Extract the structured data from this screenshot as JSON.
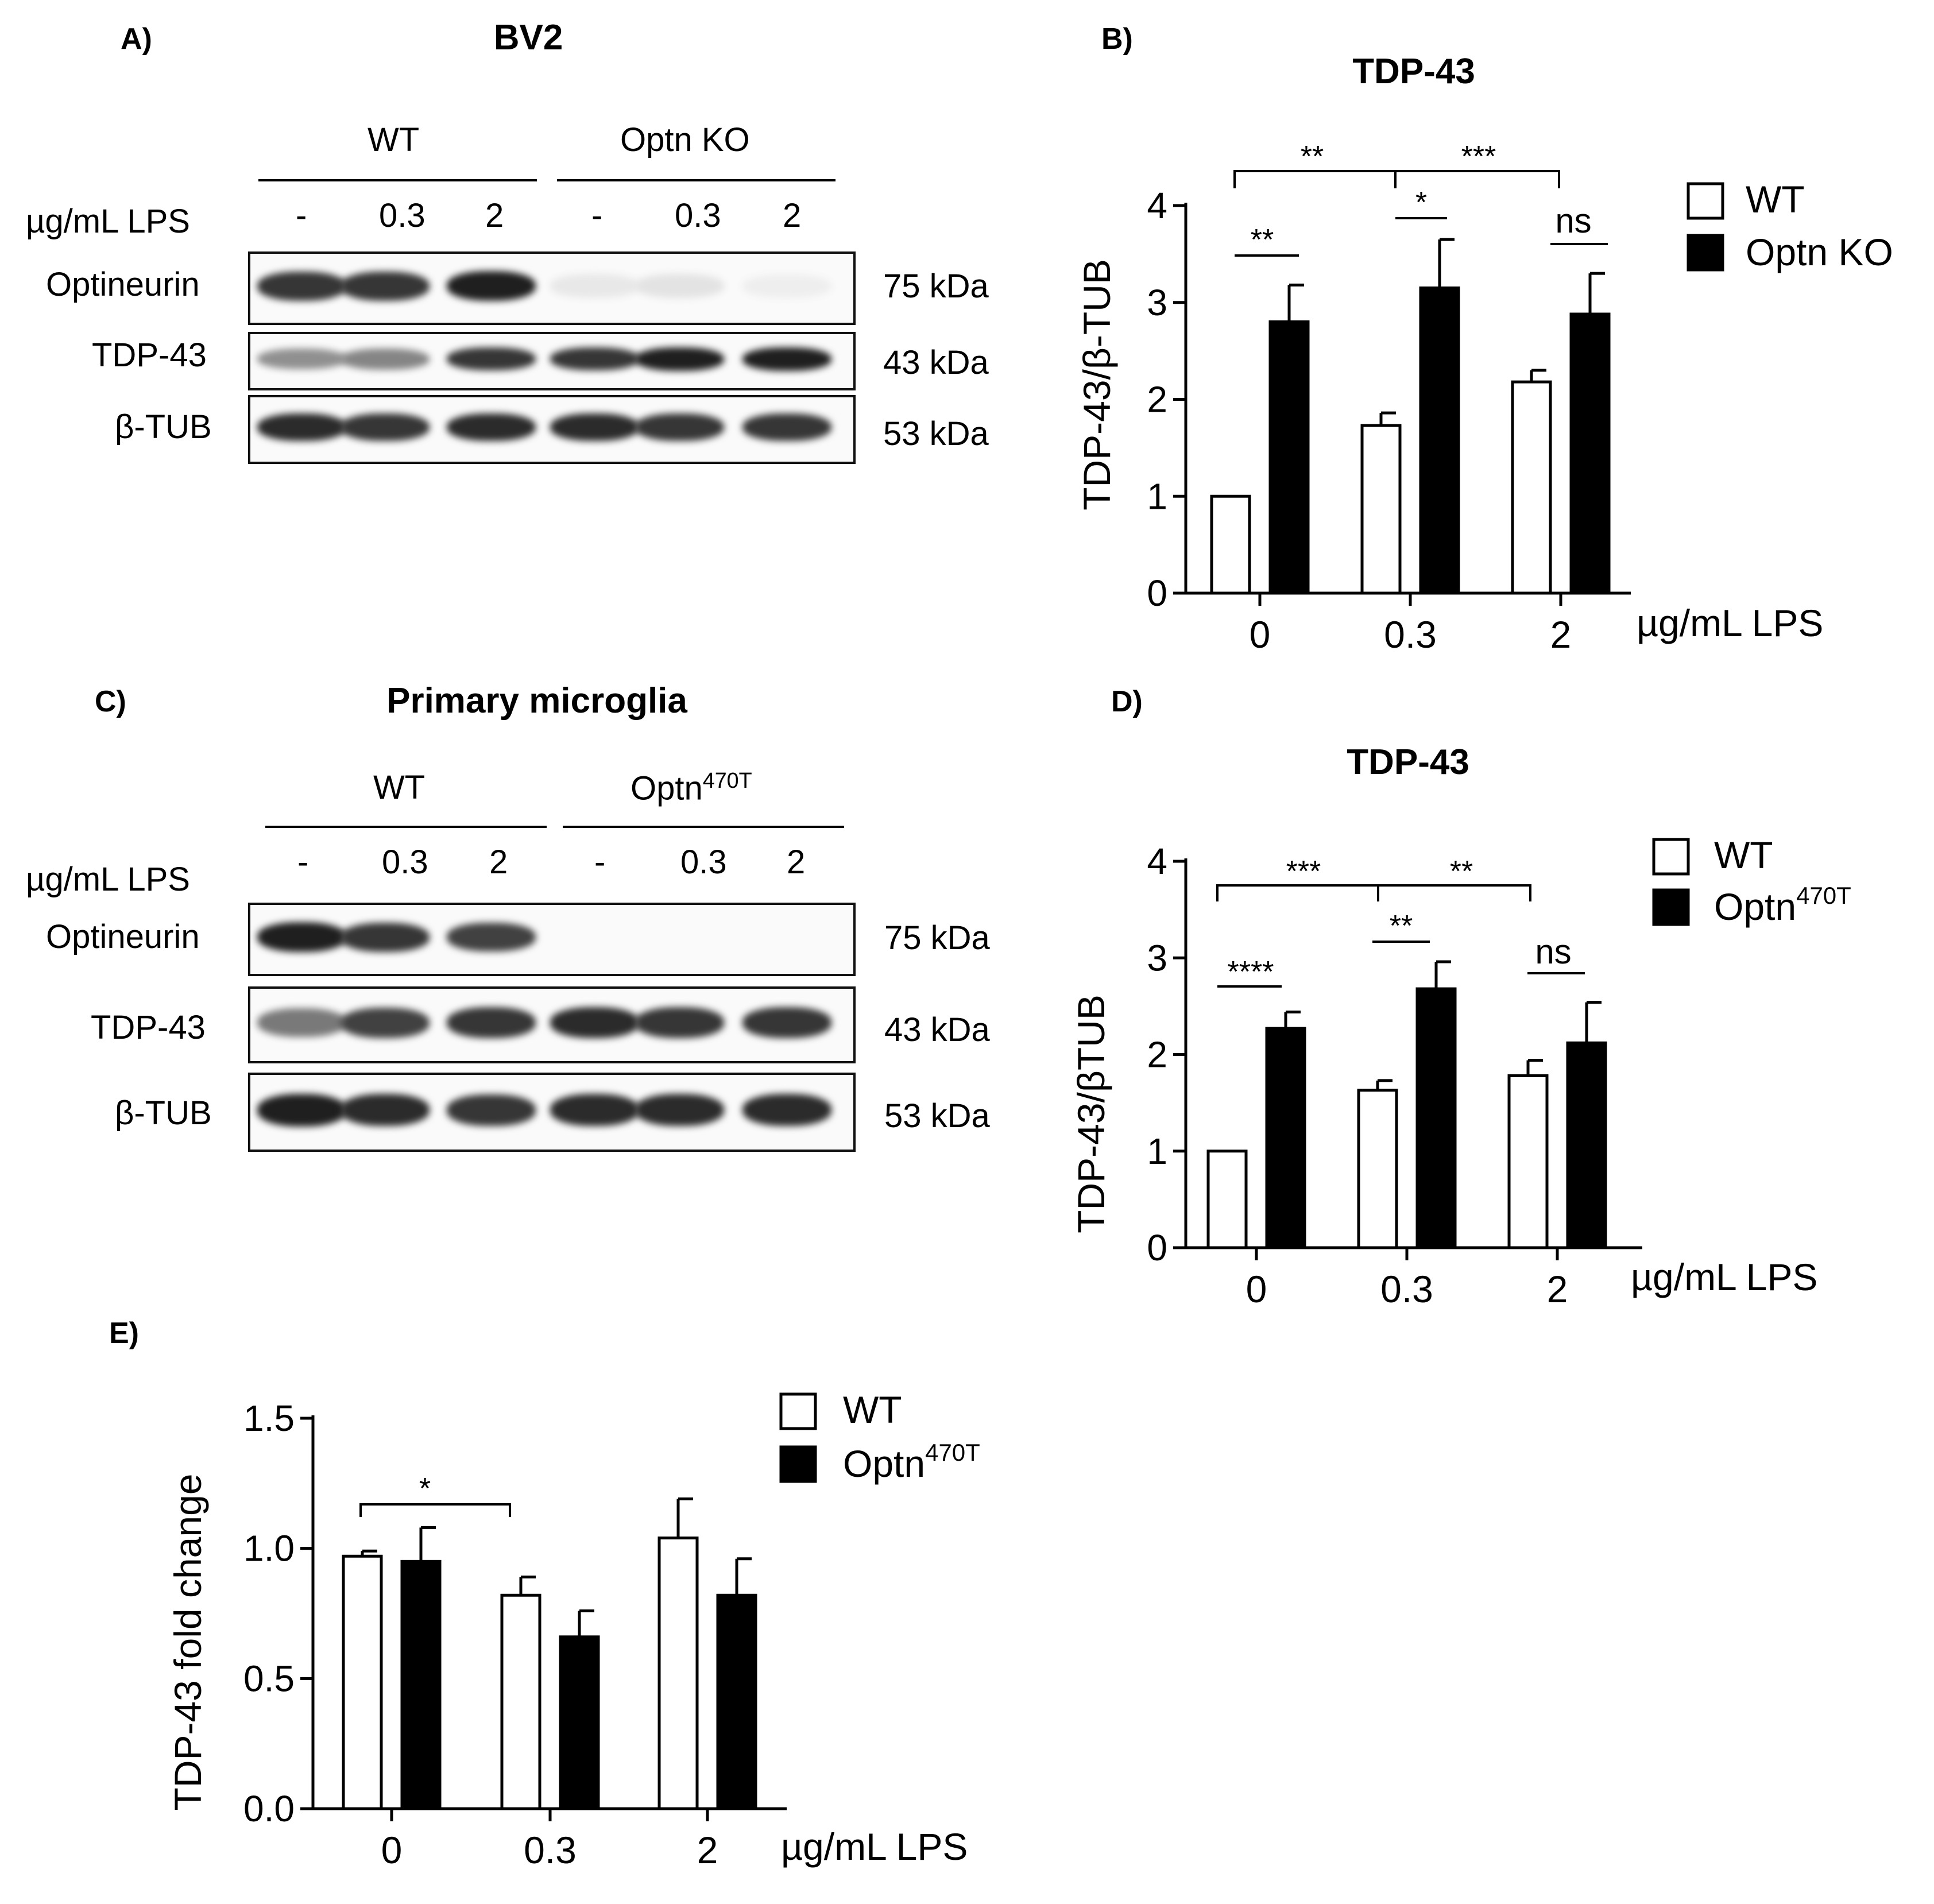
{
  "panel_A": {
    "label": "A)",
    "title": "BV2",
    "groups": [
      "WT",
      "Optn KO"
    ],
    "lps_label": "µg/mL LPS",
    "lanes": [
      "-",
      "0.3",
      "2",
      "-",
      "0.3",
      "2"
    ],
    "rows": [
      {
        "name": "Optineurin",
        "kda": "75 kDa",
        "intensity": [
          0.85,
          0.85,
          0.95,
          0.06,
          0.08,
          0.03
        ]
      },
      {
        "name": "TDP-43",
        "kda": "43 kDa",
        "intensity": [
          0.45,
          0.5,
          0.85,
          0.85,
          0.95,
          0.95
        ]
      },
      {
        "name": "β-TUB",
        "kda": "53 kDa",
        "intensity": [
          0.9,
          0.85,
          0.9,
          0.9,
          0.85,
          0.85
        ]
      }
    ]
  },
  "panel_C": {
    "label": "C)",
    "title": "Primary microglia",
    "groups": [
      "WT",
      "Optn",
      "470T"
    ],
    "lps_label": "µg/mL LPS",
    "lanes": [
      "-",
      "0.3",
      "2",
      "-",
      "0.3",
      "2"
    ],
    "rows": [
      {
        "name": "Optineurin",
        "kda": "75 kDa",
        "intensity": [
          0.95,
          0.85,
          0.8,
          0.0,
          0.0,
          0.0
        ]
      },
      {
        "name": "TDP-43",
        "kda": "43 kDa",
        "intensity": [
          0.55,
          0.8,
          0.85,
          0.9,
          0.85,
          0.85
        ]
      },
      {
        "name": "β-TUB",
        "kda": "53 kDa",
        "intensity": [
          0.95,
          0.9,
          0.85,
          0.9,
          0.9,
          0.9
        ]
      }
    ]
  },
  "panel_E_label": "E)",
  "chart_data": [
    {
      "panel": "B)",
      "type": "bar",
      "title": "TDP-43",
      "ylabel": "TDP-43/β-TUB",
      "xlabel": "µg/mL LPS",
      "categories": [
        "0",
        "0.3",
        "2"
      ],
      "ylim": [
        0,
        4
      ],
      "yticks": [
        "0",
        "1",
        "2",
        "3",
        "4"
      ],
      "series": [
        {
          "name": "WT",
          "values": [
            1.0,
            1.73,
            2.18
          ],
          "err": [
            0,
            0.13,
            0.12
          ],
          "color": "#ffffff"
        },
        {
          "name": "Optn KO",
          "values": [
            2.8,
            3.15,
            2.88
          ],
          "err": [
            0.38,
            0.5,
            0.42
          ],
          "color": "#000000"
        }
      ],
      "annotations": [
        "**",
        "***",
        "**",
        "*",
        "ns"
      ],
      "legend": [
        "WT",
        "Optn KO"
      ],
      "legend_position": "top-right"
    },
    {
      "panel": "D)",
      "type": "bar",
      "title": "TDP-43",
      "ylabel": "TDP-43/βTUB",
      "xlabel": "µg/mL LPS",
      "categories": [
        "0",
        "0.3",
        "2"
      ],
      "ylim": [
        0,
        4
      ],
      "yticks": [
        "0",
        "1",
        "2",
        "3",
        "4"
      ],
      "series": [
        {
          "name": "WT",
          "values": [
            1.0,
            1.63,
            1.78
          ],
          "err": [
            0,
            0.1,
            0.16
          ],
          "color": "#ffffff"
        },
        {
          "name": "Optn470T",
          "values": [
            2.27,
            2.68,
            2.12
          ],
          "err": [
            0.17,
            0.28,
            0.42
          ],
          "color": "#000000"
        }
      ],
      "annotations": [
        "***",
        "**",
        "****",
        "**",
        "ns"
      ],
      "legend": [
        "WT",
        "Optn",
        "470T"
      ],
      "legend_position": "top-right"
    },
    {
      "panel": "E)",
      "type": "bar",
      "title": "",
      "ylabel": "TDP-43 fold change",
      "xlabel": "µg/mL LPS",
      "categories": [
        "0",
        "0.3",
        "2"
      ],
      "ylim": [
        0,
        1.5
      ],
      "yticks": [
        "0.0",
        "0.5",
        "1.0",
        "1.5"
      ],
      "series": [
        {
          "name": "WT",
          "values": [
            0.97,
            0.82,
            1.04
          ],
          "err": [
            0.02,
            0.07,
            0.15
          ],
          "color": "#ffffff"
        },
        {
          "name": "Optn470T",
          "values": [
            0.95,
            0.66,
            0.82
          ],
          "err": [
            0.13,
            0.1,
            0.14
          ],
          "color": "#000000"
        }
      ],
      "annotations": [
        "*"
      ],
      "legend": [
        "WT",
        "Optn",
        "470T"
      ],
      "legend_position": "top-right"
    }
  ]
}
